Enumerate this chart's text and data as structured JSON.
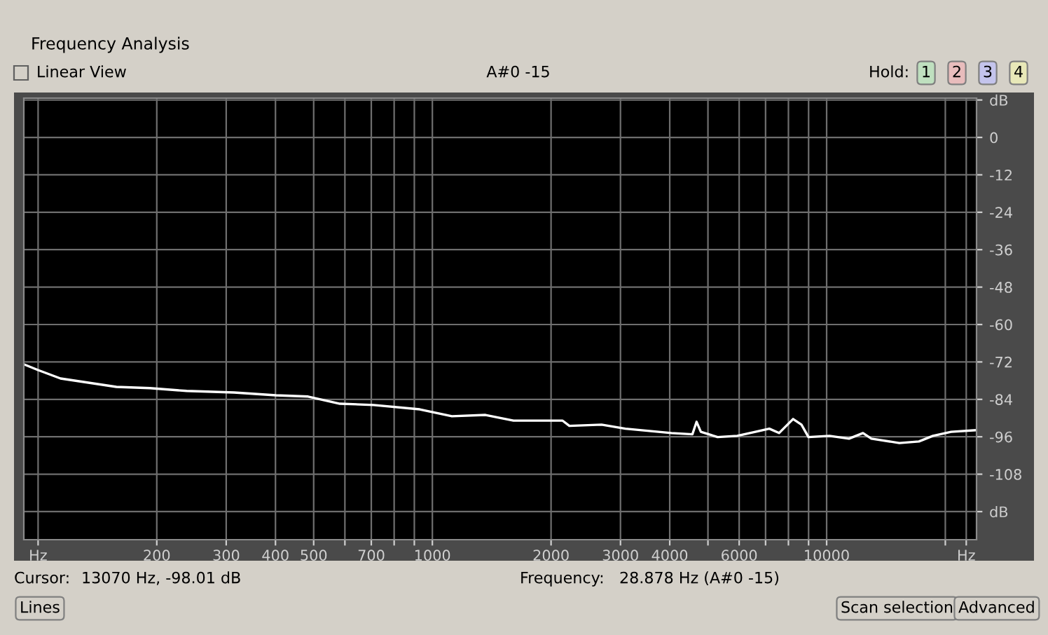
{
  "chart_data": {
    "type": "line",
    "title": "Frequency Analysis",
    "subtitle": "A#0 -15",
    "x": [
      92.2,
      100,
      114,
      158,
      192,
      238,
      314,
      401,
      484,
      583,
      710,
      929,
      1121,
      1364,
      1606,
      1785,
      2137,
      2226,
      2686,
      3086,
      4041,
      4566,
      4679,
      4797,
      5290,
      5929,
      6595,
      7153,
      7574,
      8220,
      8633,
      8994,
      10165,
      11395,
      12366,
      12986,
      15290,
      17140,
      18600,
      20690,
      23760
    ],
    "series": [
      {
        "color": "#ffffff",
        "values": [
          -72.8,
          -74.6,
          -77.3,
          -80.0,
          -80.4,
          -81.3,
          -81.8,
          -82.7,
          -83.1,
          -85.4,
          -85.8,
          -87.2,
          -89.4,
          -89.0,
          -90.8,
          -90.8,
          -90.8,
          -92.5,
          -92.1,
          -93.4,
          -94.8,
          -95.2,
          -91.2,
          -94.4,
          -96.1,
          -95.7,
          -94.4,
          -93.4,
          -94.8,
          -90.3,
          -92.1,
          -96.1,
          -95.7,
          -96.6,
          -94.8,
          -96.6,
          -98.0,
          -97.5,
          -95.7,
          -94.4,
          -93.9
        ]
      }
    ],
    "log": "x",
    "xlim": [
      92,
      24000
    ],
    "xticks": [
      {
        "value": 100,
        "label": "Hz"
      },
      200,
      300,
      400,
      500,
      {
        "value": 600,
        "label": null
      },
      700,
      {
        "value": 800,
        "label": null
      },
      {
        "value": 900,
        "label": null
      },
      1000,
      2000,
      3000,
      4000,
      {
        "value": 5000,
        "label": null
      },
      6000,
      {
        "value": 7000,
        "label": null
      },
      {
        "value": 8000,
        "label": null
      },
      {
        "value": 9000,
        "label": null
      },
      10000,
      {
        "value": 20000,
        "label": null
      },
      {
        "value": 22600,
        "label": "Hz"
      }
    ],
    "ylim": [
      -129,
      12.6
    ],
    "yticks": [
      {
        "value": 12,
        "label": "dB"
      },
      0,
      -12,
      -24,
      -36,
      -48,
      -60,
      -72,
      -84,
      -96,
      -108,
      {
        "value": -120,
        "label": "dB"
      }
    ],
    "grid": true,
    "legend": false,
    "marker": "none",
    "line_style": "solid",
    "annotations": [
      "Linear View",
      "Hold:",
      "1",
      "2",
      "3",
      "4",
      "Cursor:",
      "13070 Hz, -98.01 dB",
      "Frequency:",
      "28.878 Hz (A#0 -15)",
      "Lines",
      "Scan selection",
      "Advanced"
    ]
  }
}
